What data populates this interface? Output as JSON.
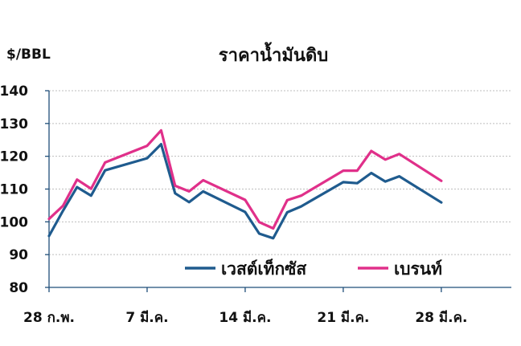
{
  "chart_data": {
    "type": "line",
    "title": "ราคาน้ำมันดิบ",
    "ylabel": "$/BBL",
    "xlabel": "",
    "ylim": [
      80,
      140
    ],
    "yticks": [
      80,
      90,
      100,
      110,
      120,
      130,
      140
    ],
    "xlim": [
      0,
      33
    ],
    "xticks": [
      {
        "x": 0,
        "label": "28 ก.พ."
      },
      {
        "x": 7,
        "label": "7 มี.ค."
      },
      {
        "x": 14,
        "label": "14 มี.ค."
      },
      {
        "x": 21,
        "label": "21 มี.ค."
      },
      {
        "x": 28,
        "label": "28 มี.ค."
      }
    ],
    "grid": true,
    "legend": "bottom-right",
    "series": [
      {
        "name": "เวสต์เท็กซัส",
        "color": "#1f5b8e",
        "x": [
          0,
          1,
          2,
          3,
          4,
          7,
          8,
          9,
          10,
          11,
          14,
          15,
          16,
          17,
          18,
          21,
          22,
          23,
          24,
          25,
          28
        ],
        "values": [
          95.7,
          103.4,
          110.6,
          108.0,
          115.7,
          119.4,
          123.7,
          108.7,
          106.0,
          109.3,
          103.0,
          96.4,
          95.0,
          102.9,
          104.7,
          112.1,
          111.8,
          114.9,
          112.3,
          113.9,
          105.9
        ]
      },
      {
        "name": "เบรนท์",
        "color": "#e0308a",
        "x": [
          0,
          1,
          2,
          3,
          4,
          7,
          8,
          9,
          10,
          11,
          14,
          15,
          16,
          17,
          18,
          21,
          22,
          23,
          24,
          25,
          28
        ],
        "values": [
          100.9,
          104.9,
          112.9,
          110.1,
          118.1,
          123.2,
          127.9,
          111.0,
          109.3,
          112.7,
          106.7,
          99.9,
          98.0,
          106.6,
          108.0,
          115.6,
          115.6,
          121.6,
          119.0,
          120.7,
          112.5
        ]
      }
    ]
  }
}
